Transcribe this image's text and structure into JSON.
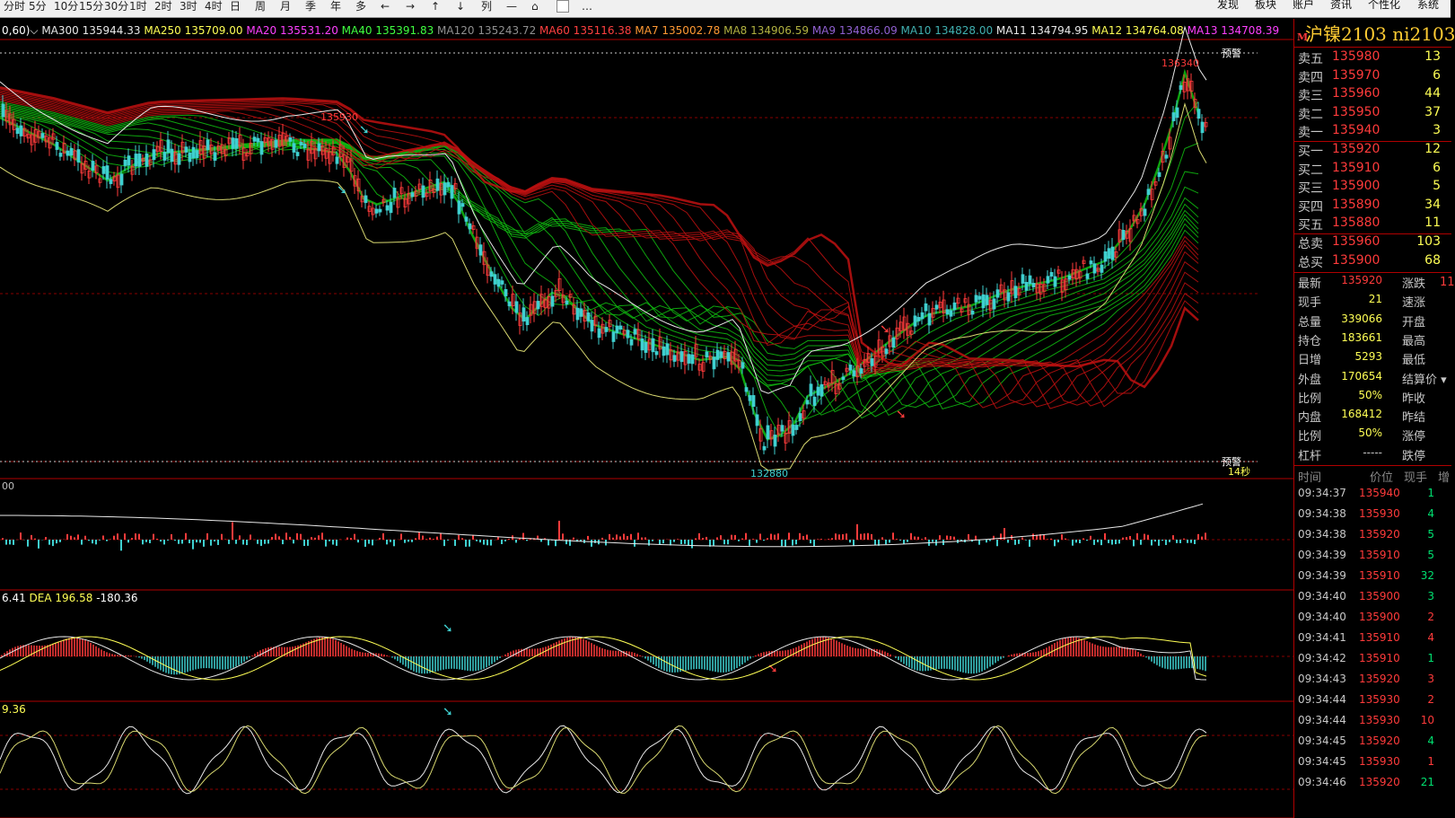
{
  "toolbar": {
    "left_items": [
      "分时",
      "5分",
      "10分",
      "15分",
      "30分",
      "1时",
      "2时",
      "3时",
      "4时",
      "日",
      "周",
      "月",
      "季",
      "年",
      "多",
      "←",
      "→",
      "↑",
      "↓",
      "列",
      "—",
      "⌂",
      "",
      "…"
    ],
    "right_items": [
      "发现",
      "板块",
      "账户",
      "资讯",
      "个性化",
      "系统"
    ]
  },
  "ma_bar": {
    "prefix": "0,60)",
    "items": [
      {
        "label": "MA300",
        "value": "135944.33",
        "color": "#e8e8e8"
      },
      {
        "label": "MA250",
        "value": "135709.00",
        "color": "#ffff55"
      },
      {
        "label": "MA20",
        "value": "135531.20",
        "color": "#ff40ff"
      },
      {
        "label": "MA40",
        "value": "135391.83",
        "color": "#40ff40"
      },
      {
        "label": "MA120",
        "value": "135243.72",
        "color": "#909090"
      },
      {
        "label": "MA60",
        "value": "135116.38",
        "color": "#ff4040"
      },
      {
        "label": "MA7",
        "value": "135002.78",
        "color": "#ff9933"
      },
      {
        "label": "MA8",
        "value": "134906.59",
        "color": "#b0b040"
      },
      {
        "label": "MA9",
        "value": "134866.09",
        "color": "#9060d0"
      },
      {
        "label": "MA10",
        "value": "134828.00",
        "color": "#40b0b0"
      },
      {
        "label": "MA11",
        "value": "134794.95",
        "color": "#e8e8e8"
      },
      {
        "label": "MA12",
        "value": "134764.08",
        "color": "#ffff55"
      },
      {
        "label": "MA13",
        "value": "134708.39",
        "color": "#ff40ff"
      }
    ]
  },
  "chart_labels": {
    "high_label": "135930",
    "top_right_label": "136340",
    "low_label": "132880",
    "alert_top": "预警",
    "alert_bottom": "预警",
    "countdown": "14秒",
    "vol_axis": "00",
    "macd_label_1": "6.41",
    "macd_label_dea": "DEA 196.58",
    "macd_label_3": "-180.36",
    "kdj_label": "9.36"
  },
  "colors": {
    "up": "#ff3b3b",
    "down": "#3fd0d0",
    "border": "#b00000",
    "ma_green": "#10c010",
    "ma_red": "#c01010",
    "label_yellow": "#ffff55"
  },
  "side": {
    "title": "沪镍2103  ni2103",
    "m_badge": "M",
    "asks": [
      {
        "label": "卖五",
        "price": "135980",
        "vol": "13"
      },
      {
        "label": "卖四",
        "price": "135970",
        "vol": "6"
      },
      {
        "label": "卖三",
        "price": "135960",
        "vol": "44"
      },
      {
        "label": "卖二",
        "price": "135950",
        "vol": "37"
      },
      {
        "label": "卖一",
        "price": "135940",
        "vol": "3"
      }
    ],
    "bids": [
      {
        "label": "买一",
        "price": "135920",
        "vol": "12"
      },
      {
        "label": "买二",
        "price": "135910",
        "vol": "6"
      },
      {
        "label": "买三",
        "price": "135900",
        "vol": "5"
      },
      {
        "label": "买四",
        "price": "135890",
        "vol": "34"
      },
      {
        "label": "买五",
        "price": "135880",
        "vol": "11"
      }
    ],
    "totals": [
      {
        "label": "总卖",
        "price": "135960",
        "vol": "103"
      },
      {
        "label": "总买",
        "price": "135900",
        "vol": "68"
      }
    ],
    "quotes": [
      {
        "label": "最新",
        "value": "135920",
        "label2": "涨跌",
        "value_color": "#ff3b3b"
      },
      {
        "label": "现手",
        "value": "21",
        "label2": "速涨",
        "value_color": "#ffff55"
      },
      {
        "label": "总量",
        "value": "339066",
        "label2": "开盘",
        "value_color": "#ffff55"
      },
      {
        "label": "持仓",
        "value": "183661",
        "label2": "最高",
        "value_color": "#ffff55"
      },
      {
        "label": "日增",
        "value": "5293",
        "label2": "最低",
        "value_color": "#ffff55"
      },
      {
        "label": "外盘",
        "value": "170654",
        "label2": "结算价",
        "value_color": "#ffff55"
      },
      {
        "label": "比例",
        "value": "50%",
        "label2": "昨收",
        "value_color": "#ffff55"
      },
      {
        "label": "内盘",
        "value": "168412",
        "label2": "昨结",
        "value_color": "#ffff55"
      },
      {
        "label": "比例",
        "value": "50%",
        "label2": "涨停",
        "value_color": "#ffff55"
      },
      {
        "label": "杠杆",
        "value": "-----",
        "label2": "跌停",
        "value_color": "#c8c8c8"
      }
    ],
    "change_partial": "11",
    "trades_header": {
      "time": "时间",
      "price": "价位",
      "vol": "现手",
      "inc": "增"
    },
    "trades": [
      {
        "time": "09:34:37",
        "price": "135940",
        "vol": "1",
        "dir": "down"
      },
      {
        "time": "09:34:38",
        "price": "135930",
        "vol": "4",
        "dir": "down"
      },
      {
        "time": "09:34:38",
        "price": "135920",
        "vol": "5",
        "dir": "down"
      },
      {
        "time": "09:34:39",
        "price": "135910",
        "vol": "5",
        "dir": "down"
      },
      {
        "time": "09:34:39",
        "price": "135910",
        "vol": "32",
        "dir": "down"
      },
      {
        "time": "09:34:40",
        "price": "135900",
        "vol": "3",
        "dir": "down"
      },
      {
        "time": "09:34:40",
        "price": "135900",
        "vol": "2",
        "dir": "up"
      },
      {
        "time": "09:34:41",
        "price": "135910",
        "vol": "4",
        "dir": "up"
      },
      {
        "time": "09:34:42",
        "price": "135910",
        "vol": "1",
        "dir": "down"
      },
      {
        "time": "09:34:43",
        "price": "135920",
        "vol": "3",
        "dir": "up"
      },
      {
        "time": "09:34:44",
        "price": "135930",
        "vol": "2",
        "dir": "up"
      },
      {
        "time": "09:34:44",
        "price": "135930",
        "vol": "10",
        "dir": "up"
      },
      {
        "time": "09:34:45",
        "price": "135920",
        "vol": "4",
        "dir": "down"
      },
      {
        "time": "09:34:45",
        "price": "135930",
        "vol": "1",
        "dir": "up"
      },
      {
        "time": "09:34:46",
        "price": "135920",
        "vol": "21",
        "dir": "down"
      }
    ]
  }
}
